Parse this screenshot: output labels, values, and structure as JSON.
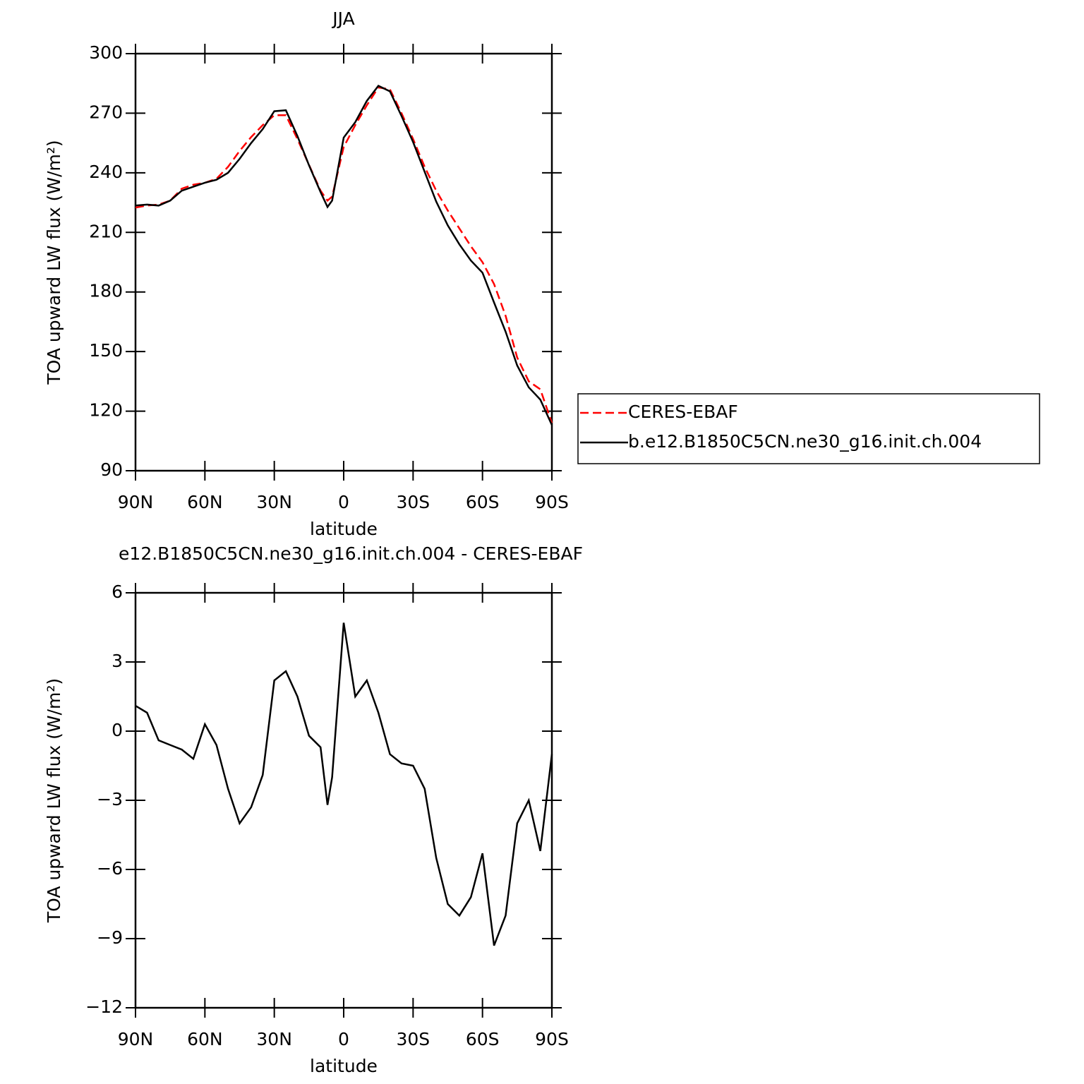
{
  "chart_data": [
    {
      "type": "line",
      "title": "JJA",
      "xlabel": "latitude",
      "ylabel": "TOA upward LW flux (W/m²)",
      "x": [
        90,
        85,
        80,
        75,
        70,
        65,
        60,
        55,
        50,
        45,
        40,
        35,
        30,
        25,
        20,
        15,
        10,
        7,
        5,
        0,
        -5,
        -10,
        -15,
        -20,
        -25,
        -30,
        -35,
        -40,
        -45,
        -50,
        -55,
        -60,
        -65,
        -70,
        -75,
        -80,
        -85,
        -90
      ],
      "series": [
        {
          "name": "CERES-EBAF",
          "color": "#ff0000",
          "dash": true,
          "values": [
            222.5,
            223.5,
            224,
            226,
            232,
            234,
            235,
            237,
            243,
            251,
            258,
            264,
            269,
            269,
            257,
            244,
            231,
            226,
            228,
            253,
            264,
            274,
            283,
            282,
            270,
            257,
            243,
            231,
            221,
            212,
            203,
            195,
            184,
            168,
            147,
            135,
            131,
            114
          ]
        },
        {
          "name": "b.e12.B1850C5CN.ne30_g16.init.ch.004",
          "color": "#000000",
          "dash": false,
          "values": [
            223.5,
            224,
            223.5,
            226,
            231,
            233,
            235,
            236.5,
            240,
            247,
            255,
            262,
            271,
            271.5,
            258.5,
            243.8,
            230.3,
            222.8,
            226,
            257.7,
            265.5,
            276.2,
            283.8,
            281,
            268.6,
            255.5,
            240.5,
            225.5,
            213.5,
            204,
            195.8,
            189.7,
            174.7,
            160,
            143,
            132,
            125.8,
            113
          ]
        }
      ],
      "xlim": [
        90,
        -90
      ],
      "xticks": [
        {
          "value": 90,
          "label": "90N"
        },
        {
          "value": 60,
          "label": "60N"
        },
        {
          "value": 30,
          "label": "30N"
        },
        0,
        {
          "value": -30,
          "label": "30S"
        },
        {
          "value": -60,
          "label": "60S"
        },
        {
          "value": -90,
          "label": "90S"
        }
      ],
      "ylim": [
        90,
        300
      ],
      "yticks": [
        90,
        120,
        150,
        180,
        210,
        240,
        270,
        300
      ]
    },
    {
      "type": "line",
      "title": "e12.B1850C5CN.ne30_g16.init.ch.004 - CERES-EBAF",
      "xlabel": "latitude",
      "ylabel": "TOA upward LW flux (W/m²)",
      "x": [
        90,
        85,
        80,
        75,
        70,
        65,
        60,
        55,
        50,
        45,
        40,
        35,
        30,
        25,
        20,
        15,
        10,
        7,
        5,
        0,
        -5,
        -10,
        -15,
        -20,
        -25,
        -30,
        -35,
        -40,
        -45,
        -50,
        -55,
        -60,
        -65,
        -70,
        -75,
        -80,
        -85,
        -90
      ],
      "color": "#000000",
      "values": [
        1.1,
        0.8,
        -0.4,
        -0.6,
        -0.8,
        -1.2,
        0.3,
        -0.6,
        -2.5,
        -4,
        -3.3,
        -1.9,
        2.2,
        2.6,
        1.5,
        -0.2,
        -0.7,
        -3.2,
        -2,
        4.7,
        1.5,
        2.2,
        0.8,
        -1,
        -1.4,
        -1.5,
        -2.5,
        -5.5,
        -7.5,
        -8,
        -7.2,
        -5.3,
        -9.3,
        -8,
        -4,
        -3,
        -5.2,
        -1
      ],
      "xlim": [
        90,
        -90
      ],
      "xticks": [
        {
          "value": 90,
          "label": "90N"
        },
        {
          "value": 60,
          "label": "60N"
        },
        {
          "value": 30,
          "label": "30N"
        },
        0,
        {
          "value": -30,
          "label": "30S"
        },
        {
          "value": -60,
          "label": "60S"
        },
        {
          "value": -90,
          "label": "90S"
        }
      ],
      "ylim": [
        -12,
        6
      ],
      "yticks": [
        {
          "value": -12,
          "label": "−12"
        },
        {
          "value": -9,
          "label": "−9"
        },
        {
          "value": -6,
          "label": "−6"
        },
        {
          "value": -3,
          "label": "−3"
        },
        0,
        3,
        6
      ]
    }
  ]
}
